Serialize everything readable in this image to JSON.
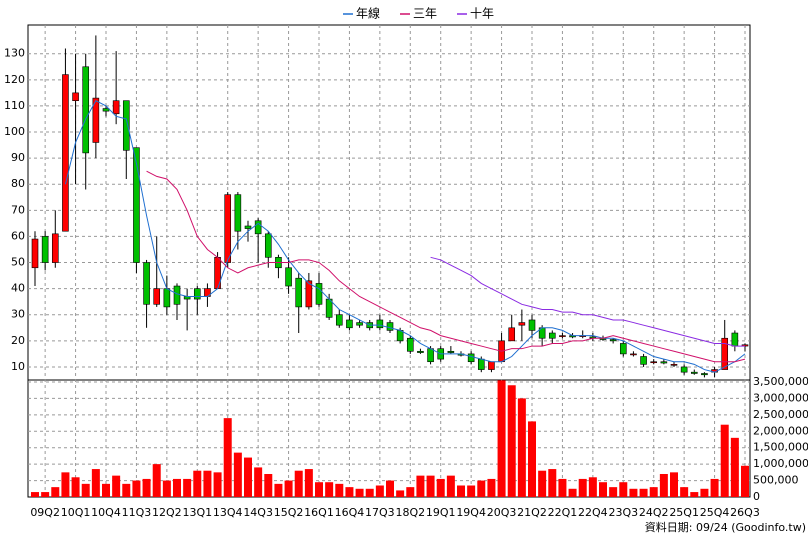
{
  "chart_data": [
    {
      "type": "candlestick",
      "categories": [
        null,
        "09Q2",
        null,
        null,
        "10Q1",
        null,
        null,
        "10Q4",
        null,
        null,
        "11Q3",
        null,
        null,
        "12Q2",
        null,
        null,
        "13Q1",
        null,
        null,
        "13Q4",
        null,
        null,
        "14Q3",
        null,
        null,
        "15Q2",
        null,
        null,
        "16Q1",
        null,
        null,
        "16Q4",
        null,
        null,
        "17Q3",
        null,
        null,
        "18Q2",
        null,
        null,
        "19Q1",
        null,
        null,
        "19Q4",
        null,
        null,
        "20Q3",
        null,
        null,
        "21Q2",
        null,
        null,
        "22Q1",
        null,
        null,
        "22Q4",
        null,
        null,
        "23Q3",
        null,
        null,
        "24Q2",
        null,
        null,
        "25Q1",
        null,
        null,
        "25Q4",
        null,
        null,
        "26Q3"
      ],
      "open": [
        48,
        60,
        50,
        62,
        112,
        125,
        96,
        109,
        107,
        112,
        94,
        50,
        34,
        40,
        41,
        37,
        40,
        37,
        40,
        50,
        76,
        64,
        66,
        61,
        52,
        48,
        44,
        33,
        42,
        36,
        30,
        28,
        27,
        27,
        28,
        27,
        24,
        21,
        16,
        17,
        17,
        16,
        15,
        15,
        13,
        9,
        12,
        20,
        26,
        28,
        25,
        23,
        22,
        22,
        22,
        21.5,
        21,
        20.5,
        19,
        15,
        14,
        12,
        12,
        11,
        10,
        8,
        7.5,
        8,
        9,
        23,
        18
      ],
      "high": [
        62,
        62,
        70,
        132,
        130,
        130,
        137,
        110,
        131,
        112,
        94,
        51,
        60,
        45,
        42,
        40,
        41,
        42,
        54,
        77,
        77,
        66,
        67,
        62,
        53,
        52,
        46,
        46,
        46,
        38,
        32,
        30,
        28,
        28,
        30,
        28,
        25,
        22,
        17,
        18,
        18,
        18,
        16,
        16,
        14,
        12,
        23,
        30,
        32,
        30,
        26,
        24,
        23,
        23,
        24,
        23,
        22,
        21,
        20,
        16,
        15,
        13,
        13,
        12,
        11,
        9,
        8,
        10,
        28,
        24,
        19
      ],
      "low": [
        41,
        47,
        48,
        62,
        80,
        78,
        90,
        106,
        103,
        82,
        46,
        25,
        33,
        30,
        28,
        24,
        30,
        33,
        40,
        48,
        55,
        58,
        50,
        48,
        44,
        38,
        23,
        32,
        33,
        28,
        25,
        24,
        25,
        24,
        24,
        23,
        19,
        15,
        15,
        11,
        12,
        15,
        14,
        11,
        8,
        8,
        12,
        20,
        20,
        21,
        18,
        19,
        21,
        21,
        21,
        20,
        20,
        19,
        14,
        14,
        10,
        11,
        11,
        10,
        7,
        7,
        6,
        6,
        9,
        16,
        16
      ],
      "close": [
        59,
        50,
        61,
        122,
        115,
        92,
        113,
        108,
        112,
        93,
        50,
        34,
        40,
        33,
        34,
        36,
        36,
        40,
        52,
        76,
        62,
        63,
        61,
        52,
        48,
        41,
        33,
        43,
        34,
        29,
        26,
        25,
        26,
        25,
        25,
        24,
        20,
        16,
        15.5,
        12,
        13,
        15.5,
        14.5,
        12,
        9,
        12,
        20,
        25,
        27,
        24,
        21,
        21,
        22,
        21.5,
        22,
        21,
        20.5,
        20,
        15,
        15,
        11,
        12,
        11.5,
        11,
        8,
        7.5,
        7,
        9,
        21,
        18,
        18.5
      ],
      "up_color": "#ff0000",
      "down_color": "#00c000",
      "series": [
        {
          "name": "年線",
          "color": "#1f6fd0",
          "values": [
            null,
            null,
            null,
            80,
            96,
            105,
            112,
            110,
            106,
            105,
            88,
            68,
            50,
            40,
            38,
            37,
            37,
            37,
            40,
            51,
            58,
            62,
            65,
            62,
            57,
            51,
            46,
            42,
            40,
            36,
            32,
            30,
            28,
            26,
            26,
            25,
            24,
            22,
            19,
            17,
            15,
            15,
            15,
            14,
            13,
            12,
            12,
            14,
            18,
            22,
            25,
            25,
            24,
            22,
            22,
            22,
            21,
            21,
            20,
            18,
            16,
            14,
            13,
            12,
            12,
            11,
            9,
            8,
            10,
            12,
            15
          ]
        },
        {
          "name": "三年",
          "color": "#d0106a",
          "values": [
            null,
            null,
            null,
            null,
            null,
            null,
            null,
            null,
            null,
            null,
            null,
            85,
            83,
            82,
            78,
            70,
            60,
            55,
            52,
            48,
            46,
            48,
            49,
            50,
            50,
            50,
            51,
            51,
            50,
            47,
            43,
            40,
            37,
            35,
            33,
            31,
            29,
            27,
            25,
            24,
            22,
            21,
            20,
            19,
            18,
            17,
            16,
            17,
            17,
            18,
            18,
            19,
            19,
            20,
            20,
            21,
            21,
            22,
            21,
            20,
            19,
            18,
            17,
            16,
            15,
            14,
            13,
            12,
            12,
            12,
            13
          ]
        },
        {
          "name": "十年",
          "color": "#8a2be2",
          "values": [
            null,
            null,
            null,
            null,
            null,
            null,
            null,
            null,
            null,
            null,
            null,
            null,
            null,
            null,
            null,
            null,
            null,
            null,
            null,
            null,
            null,
            null,
            null,
            null,
            null,
            null,
            null,
            null,
            null,
            null,
            null,
            null,
            null,
            null,
            null,
            null,
            null,
            null,
            null,
            52,
            51,
            49,
            47,
            45,
            42,
            40,
            38,
            36,
            34,
            33,
            32,
            32,
            31,
            31,
            30,
            30,
            29,
            28,
            28,
            27,
            26,
            25,
            24,
            23,
            22,
            21,
            20,
            19,
            19,
            18,
            18
          ]
        }
      ],
      "ylim": [
        5,
        141
      ],
      "yticks": [
        10,
        20,
        30,
        40,
        50,
        60,
        70,
        80,
        90,
        100,
        110,
        120,
        130
      ],
      "grid": true
    },
    {
      "type": "bar",
      "color": "#ff0000",
      "values": [
        150000,
        150000,
        300000,
        750000,
        600000,
        400000,
        850000,
        400000,
        650000,
        400000,
        500000,
        550000,
        1000000,
        500000,
        550000,
        550000,
        800000,
        800000,
        750000,
        2400000,
        1350000,
        1200000,
        900000,
        700000,
        400000,
        500000,
        800000,
        850000,
        450000,
        450000,
        400000,
        300000,
        250000,
        250000,
        350000,
        500000,
        200000,
        300000,
        650000,
        650000,
        550000,
        650000,
        350000,
        350000,
        500000,
        550000,
        3550000,
        3400000,
        3000000,
        2300000,
        800000,
        850000,
        550000,
        250000,
        550000,
        600000,
        450000,
        300000,
        450000,
        250000,
        250000,
        300000,
        700000,
        750000,
        300000,
        150000,
        250000,
        550000,
        2200000,
        1800000,
        950000
      ],
      "ylim": [
        0,
        3560000
      ],
      "yticks": [
        0,
        {
          "value": 500000,
          "label": "500,000"
        },
        {
          "value": 1000000,
          "label": "1,000,000"
        },
        {
          "value": 1500000,
          "label": "1,500,000"
        },
        {
          "value": 2000000,
          "label": "2,000,000"
        },
        {
          "value": 2500000,
          "label": "2,500,000"
        },
        {
          "value": 3000000,
          "label": "3,000,000"
        },
        {
          "value": 3500000,
          "label": "3,500,000"
        }
      ]
    }
  ],
  "footnote": "資料日期: 09/24  (Goodinfo.tw)"
}
